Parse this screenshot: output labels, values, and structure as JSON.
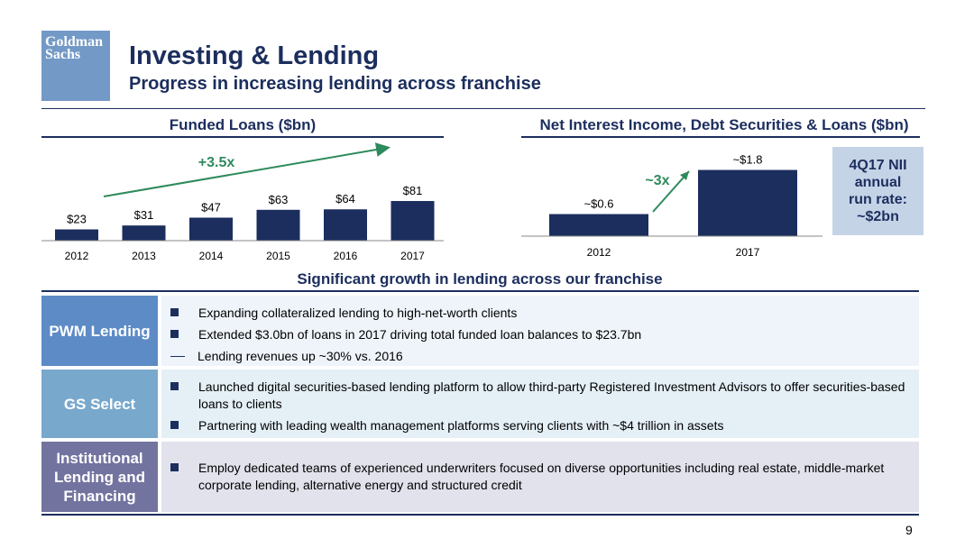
{
  "logo": {
    "line1": "Goldman",
    "line2": "Sachs"
  },
  "header": {
    "title": "Investing & Lending",
    "subtitle": "Progress in increasing lending across franchise"
  },
  "funded_loans": {
    "title": "Funded Loans ($bn)",
    "growth_label": "+3.5x"
  },
  "nii": {
    "title": "Net Interest Income, Debt Securities & Loans ($bn)",
    "growth_label": "~3x",
    "box": {
      "line1": "4Q17 NII",
      "line2": "annual",
      "line3": "run rate:",
      "line4": "~$2bn"
    }
  },
  "chart_data": [
    {
      "type": "bar",
      "title": "Funded Loans ($bn)",
      "categories": [
        "2012",
        "2013",
        "2014",
        "2015",
        "2016",
        "2017"
      ],
      "values": [
        23,
        31,
        47,
        63,
        64,
        81
      ],
      "data_labels": [
        "$23",
        "$31",
        "$47",
        "$63",
        "$64",
        "$81"
      ],
      "annotation": "+3.5x",
      "color": "#1c2e5e"
    },
    {
      "type": "bar",
      "title": "Net Interest Income, Debt Securities & Loans ($bn)",
      "categories": [
        "2012",
        "2017"
      ],
      "values": [
        0.6,
        1.8
      ],
      "data_labels": [
        "~$0.6",
        "~$1.8"
      ],
      "annotation": "~3x",
      "color": "#1c2e5e"
    }
  ],
  "section": {
    "title": "Significant growth in lending across our franchise",
    "rows": [
      {
        "label": "PWM Lending",
        "bullets": [
          "Expanding collateralized lending to high-net-worth clients",
          "Extended $3.0bn of loans in 2017 driving total funded loan balances to $23.7bn"
        ],
        "sub": "Lending revenues up ~30% vs. 2016"
      },
      {
        "label": "GS Select",
        "bullets": [
          "Launched digital securities-based lending platform to allow third-party Registered Investment Advisors to offer securities-based loans to clients",
          "Partnering with leading wealth management platforms serving clients with ~$4 trillion in assets"
        ]
      },
      {
        "label": "Institutional Lending and Financing",
        "bullets": [
          "Employ dedicated teams of experienced underwriters focused on diverse opportunities including real estate, middle-market corporate lending, alternative energy and structured credit"
        ]
      }
    ]
  },
  "page_number": "9",
  "colors": {
    "navy": "#1c2e5e",
    "green": "#2e8a5c",
    "logo_blue": "#7399c6",
    "box_blue": "#c5d3e7",
    "pwm": "#5d8bc6",
    "gs_select": "#79a8cd",
    "institutional": "#7373a0"
  }
}
